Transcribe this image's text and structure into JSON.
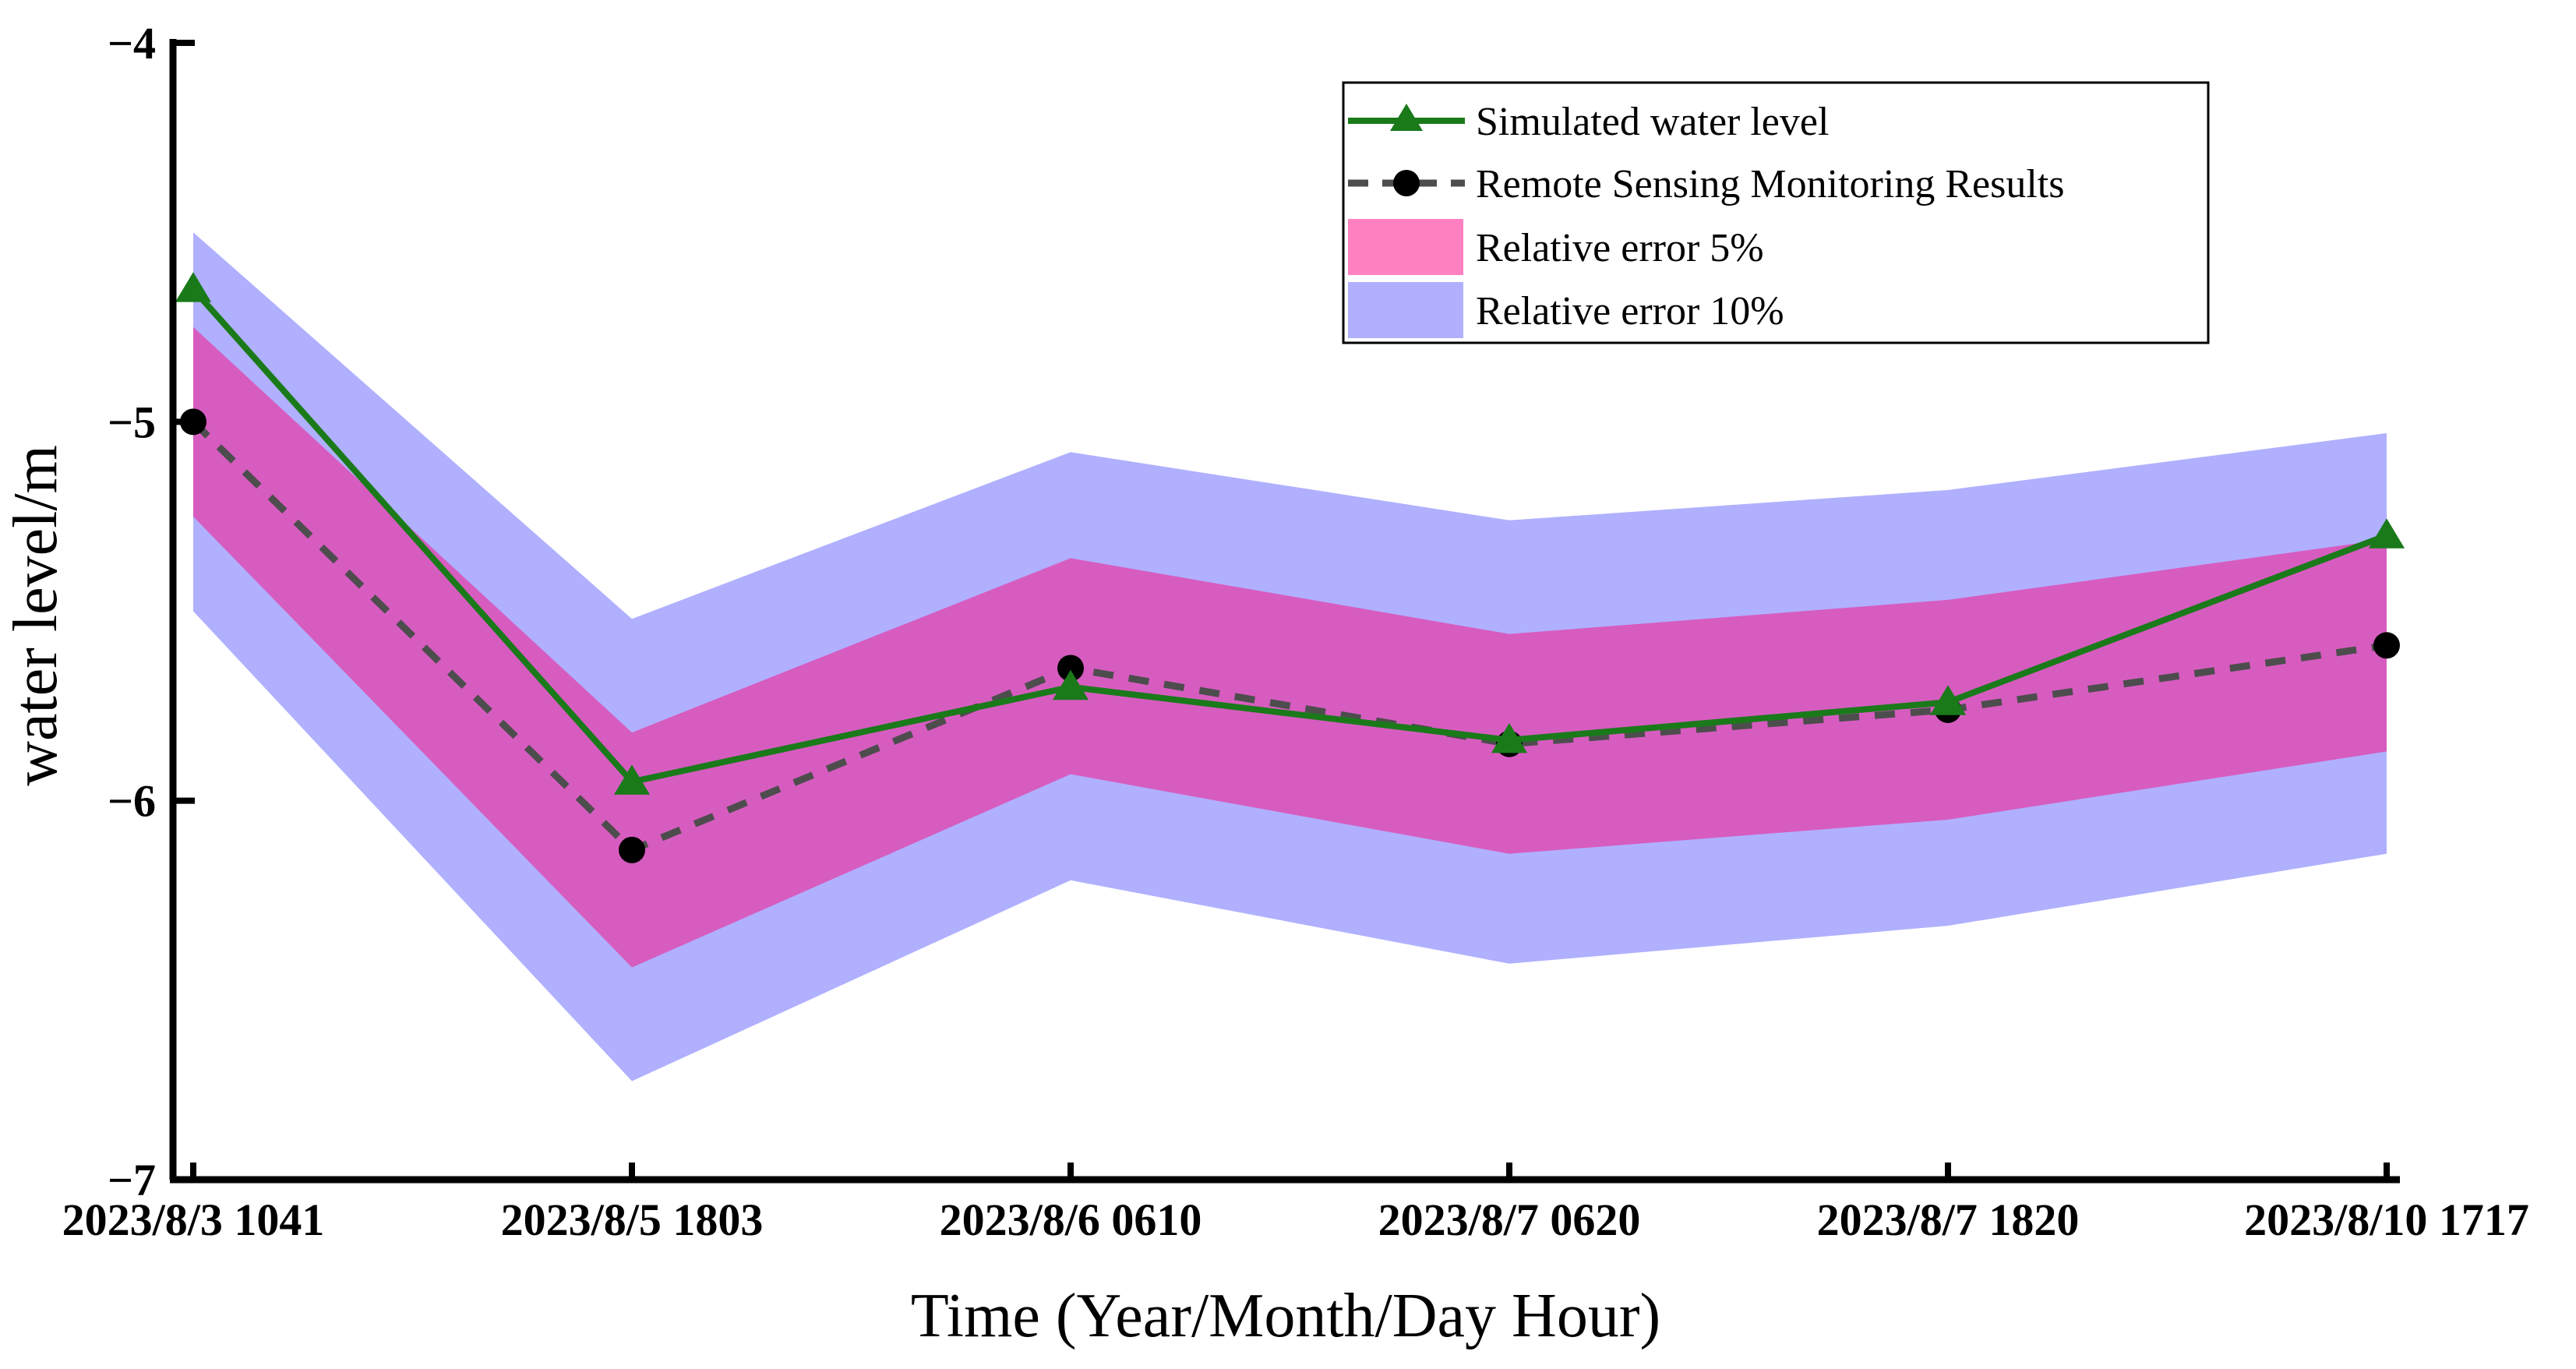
{
  "chart_data": {
    "type": "line",
    "xlabel": "Time (Year/Month/Day Hour)",
    "ylabel": "water level/m",
    "categories": [
      "2023/8/3 1041",
      "2023/8/5 1803",
      "2023/8/6 0610",
      "2023/8/7 0620",
      "2023/8/7 1820",
      "2023/8/10 1717"
    ],
    "ylim": [
      -7,
      -4
    ],
    "yticks": [
      -4,
      -5,
      -6,
      -7
    ],
    "ytick_labels": [
      "−4",
      "−5",
      "−6",
      "−7"
    ],
    "legend_position": "top-right",
    "series": [
      {
        "name": "Simulated water level",
        "style": "solid line with triangle markers",
        "color": "#1a7a1a",
        "values": [
          -4.65,
          -5.95,
          -5.7,
          -5.84,
          -5.74,
          -5.3
        ]
      },
      {
        "name": "Remote Sensing Monitoring Results",
        "style": "dashed line with circle markers",
        "color": "#4d4d4d",
        "values": [
          -5.0,
          -6.13,
          -5.65,
          -5.85,
          -5.76,
          -5.59
        ]
      }
    ],
    "bands": [
      {
        "name": "Relative error 10%",
        "color": "#b0b0ff",
        "lower": [
          -5.5,
          -6.74,
          -6.21,
          -6.43,
          -6.33,
          -6.14
        ],
        "upper": [
          -4.5,
          -5.52,
          -5.08,
          -5.26,
          -5.18,
          -5.03
        ]
      },
      {
        "name": "Relative error 5%",
        "color": "#ff80c0",
        "overlap_color": "#d75cc0",
        "lower": [
          -5.25,
          -6.44,
          -5.93,
          -6.14,
          -6.05,
          -5.87
        ],
        "upper": [
          -4.75,
          -5.82,
          -5.36,
          -5.56,
          -5.47,
          -5.31
        ]
      }
    ],
    "legend": [
      {
        "label": "Simulated water level",
        "kind": "line-triangle",
        "color": "#1a7a1a"
      },
      {
        "label": "Remote Sensing Monitoring Results",
        "kind": "dash-circle",
        "color": "#4d4d4d"
      },
      {
        "label": "Relative error 5%",
        "kind": "swatch",
        "color": "#ff80c0"
      },
      {
        "label": "Relative error 10%",
        "kind": "swatch",
        "color": "#b0b0ff"
      }
    ]
  }
}
